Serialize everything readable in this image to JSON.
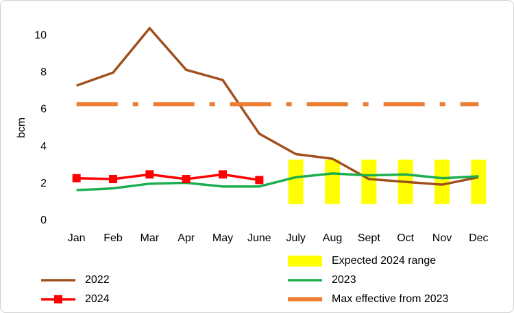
{
  "chart_data": {
    "type": "line",
    "y_label": "bcm",
    "categories": [
      "Jan",
      "Feb",
      "Mar",
      "Apr",
      "May",
      "June",
      "July",
      "Aug",
      "Sept",
      "Oct",
      "Nov",
      "Dec"
    ],
    "ylim": [
      0,
      11
    ],
    "yticks": [
      0,
      2,
      4,
      6,
      8,
      10
    ],
    "series": [
      {
        "name": "Expected 2024 range",
        "type": "range",
        "color": "#ffff00",
        "low": [
          null,
          null,
          null,
          null,
          null,
          null,
          0.9,
          0.9,
          0.9,
          0.9,
          0.9,
          0.9
        ],
        "high": [
          null,
          null,
          null,
          null,
          null,
          null,
          3.3,
          3.3,
          3.3,
          3.3,
          3.3,
          3.3
        ]
      },
      {
        "name": "2022",
        "type": "line",
        "color": "#a0501e",
        "values": [
          7.3,
          8.0,
          10.4,
          8.15,
          7.6,
          4.7,
          3.6,
          3.35,
          2.25,
          2.1,
          1.95,
          2.35
        ]
      },
      {
        "name": "2023",
        "type": "line",
        "color": "#1aae4e",
        "values": [
          1.65,
          1.75,
          2.0,
          2.05,
          1.85,
          1.85,
          2.35,
          2.55,
          2.45,
          2.5,
          2.3,
          2.4
        ]
      },
      {
        "name": "2024",
        "type": "line",
        "color": "#ff0000",
        "marker": "square",
        "values": [
          2.3,
          2.25,
          2.5,
          2.25,
          2.5,
          2.2,
          null,
          null,
          null,
          null,
          null,
          null
        ]
      },
      {
        "name": "Max effective from 2023",
        "type": "line",
        "color": "#ed7d31",
        "dash": "dash-dot",
        "values": [
          6.3,
          6.3,
          6.3,
          6.3,
          6.3,
          6.3,
          6.3,
          6.3,
          6.3,
          6.3,
          6.3,
          6.3
        ]
      }
    ]
  }
}
